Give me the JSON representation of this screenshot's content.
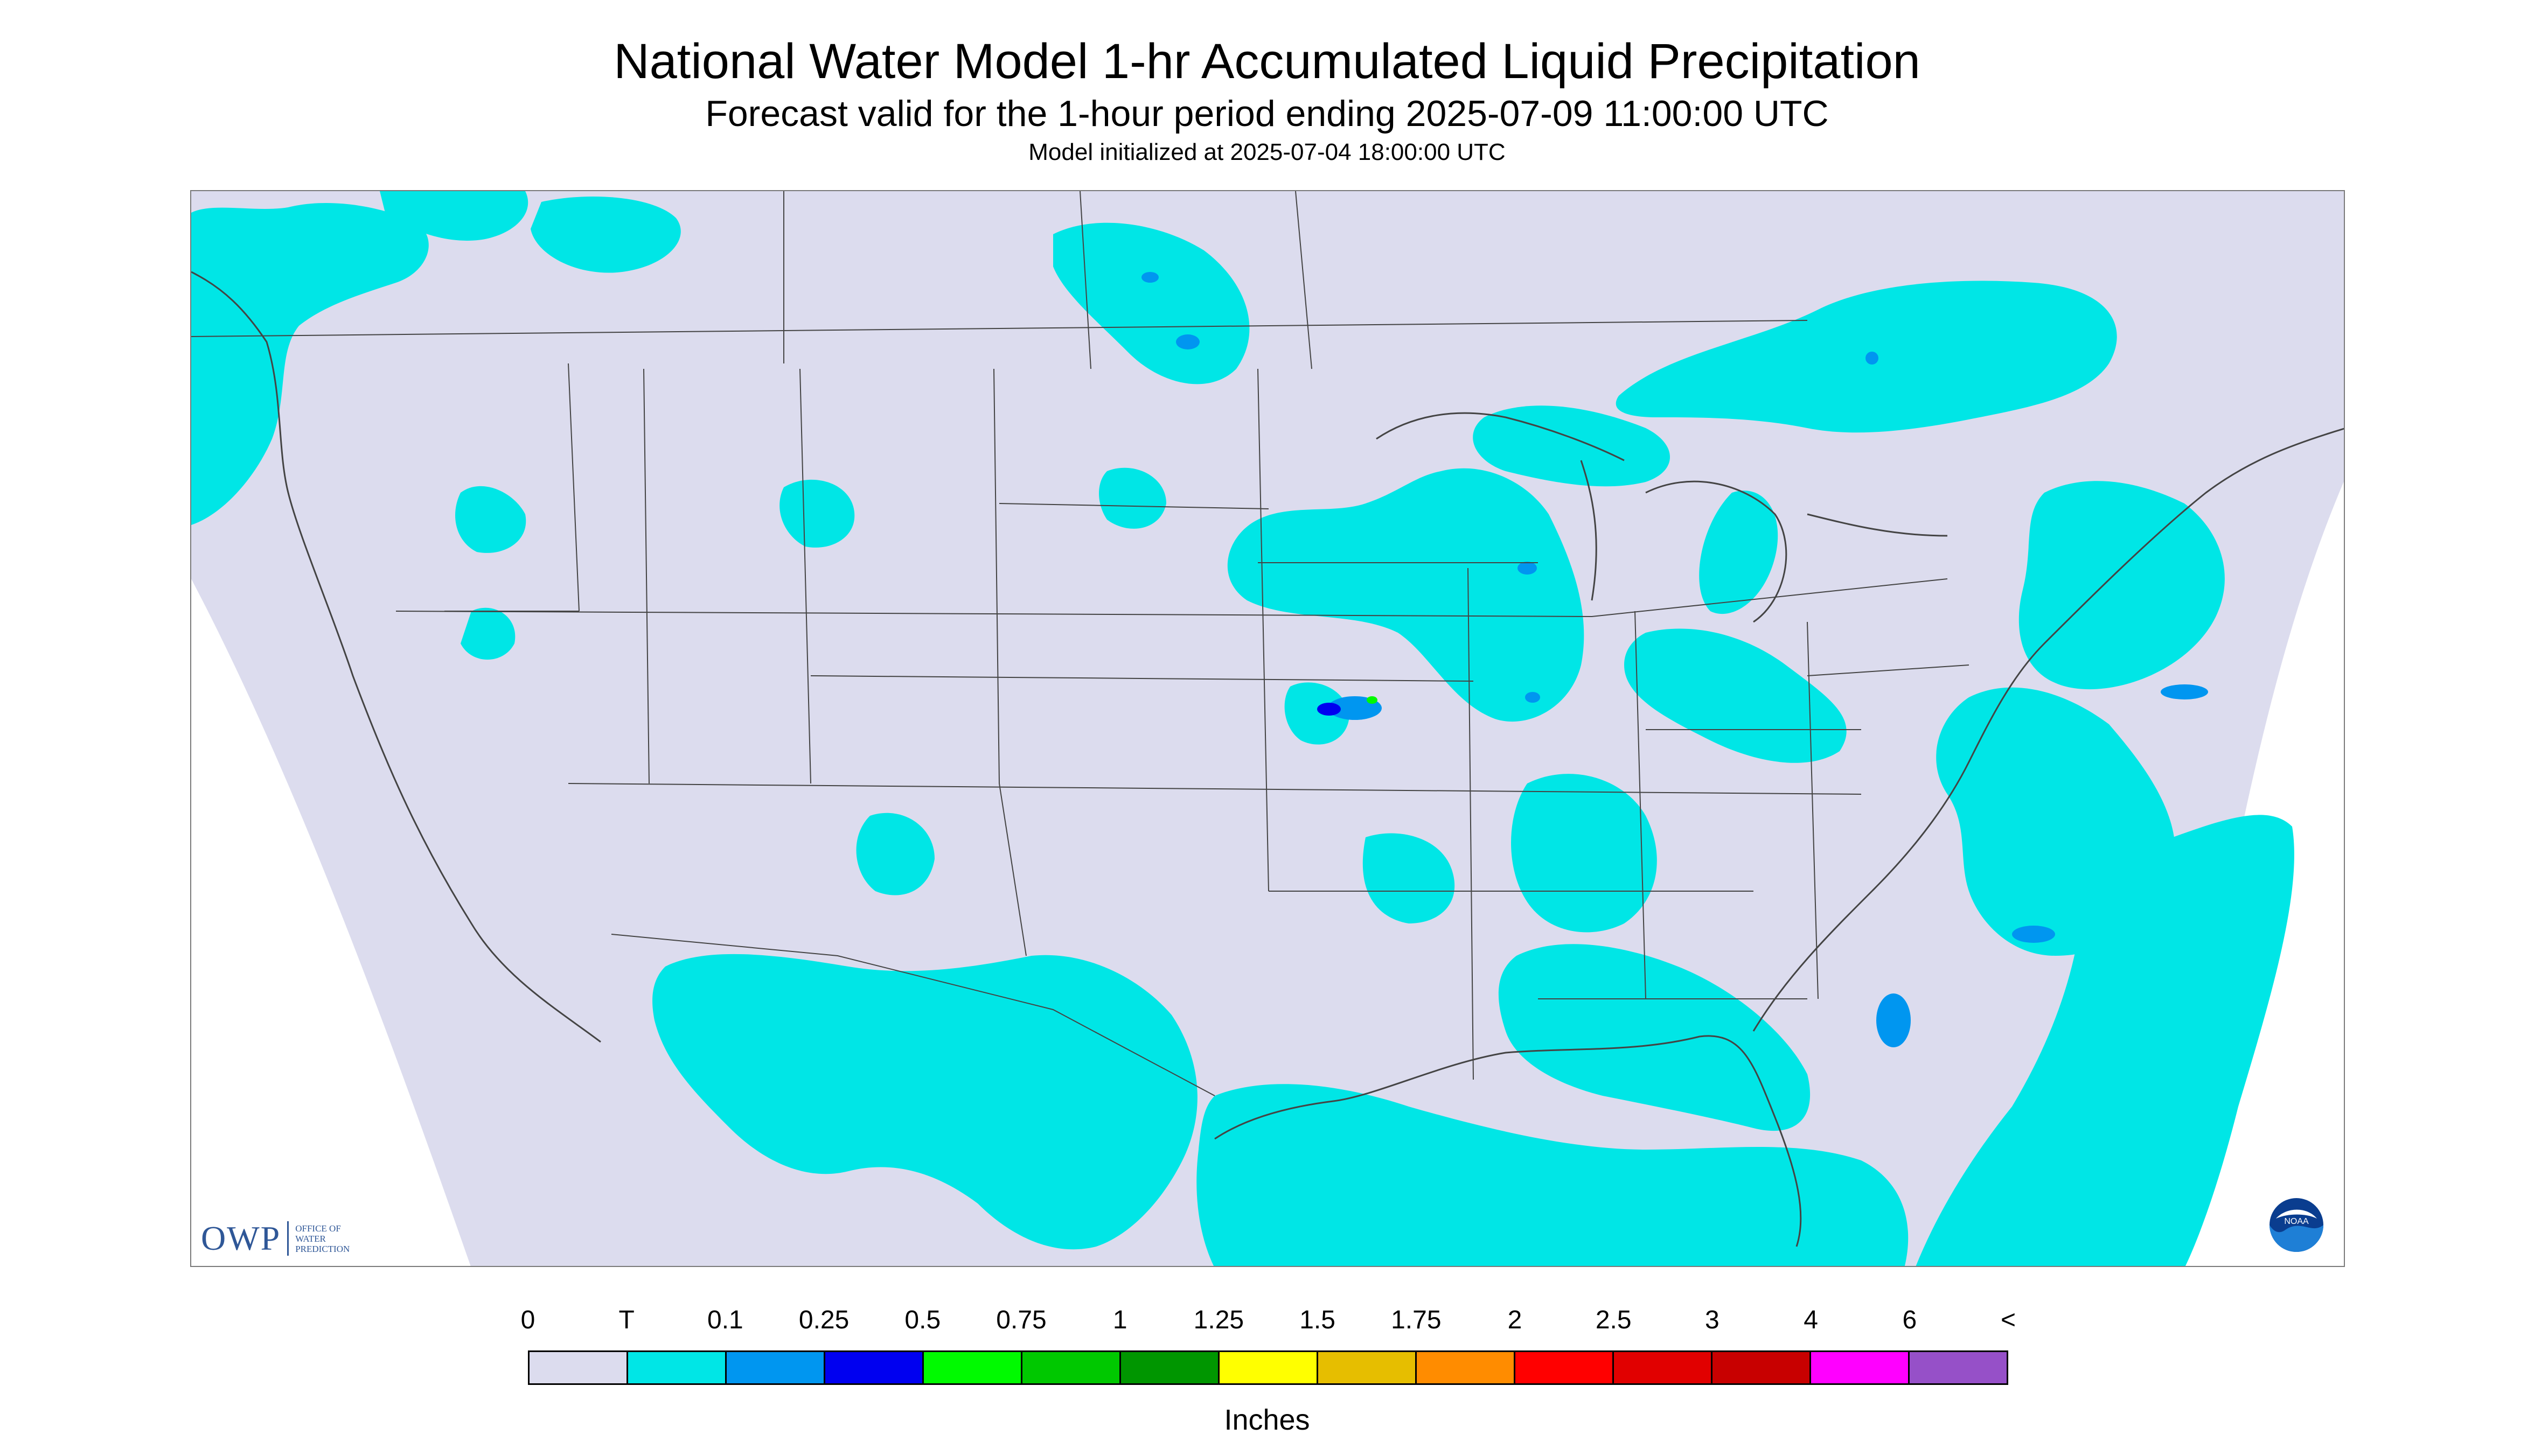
{
  "header": {
    "title": "National Water Model 1-hr Accumulated Liquid Precipitation",
    "subtitle": "Forecast valid for the 1-hour period ending 2025-07-09 11:00:00 UTC",
    "init_line": "Model initialized at 2025-07-04 18:00:00 UTC"
  },
  "logos": {
    "owp_abbrev": "OWP",
    "owp_line1": "OFFICE OF",
    "owp_line2": "WATER",
    "owp_line3": "PREDICTION",
    "noaa": "NOAA"
  },
  "legend": {
    "title": "Inches",
    "ticks": [
      "0",
      "T",
      "0.1",
      "0.25",
      "0.5",
      "0.75",
      "1",
      "1.25",
      "1.5",
      "1.75",
      "2",
      "2.5",
      "3",
      "4",
      "6",
      "<"
    ],
    "colors": [
      "#dcdcee",
      "#00e6e6",
      "#0096f0",
      "#0000f0",
      "#00fa00",
      "#00c800",
      "#009600",
      "#ffff00",
      "#e6be00",
      "#ff8c00",
      "#ff0000",
      "#e10000",
      "#c80000",
      "#ff00ff",
      "#9650c8"
    ]
  },
  "map_colors": {
    "no_data": "#ffffff",
    "zero": "#dcdcee",
    "trace": "#00e6e6",
    "light": "#0096f0",
    "moderate": "#0000f0",
    "heavy": "#00fa00",
    "boundary": "#444444"
  }
}
